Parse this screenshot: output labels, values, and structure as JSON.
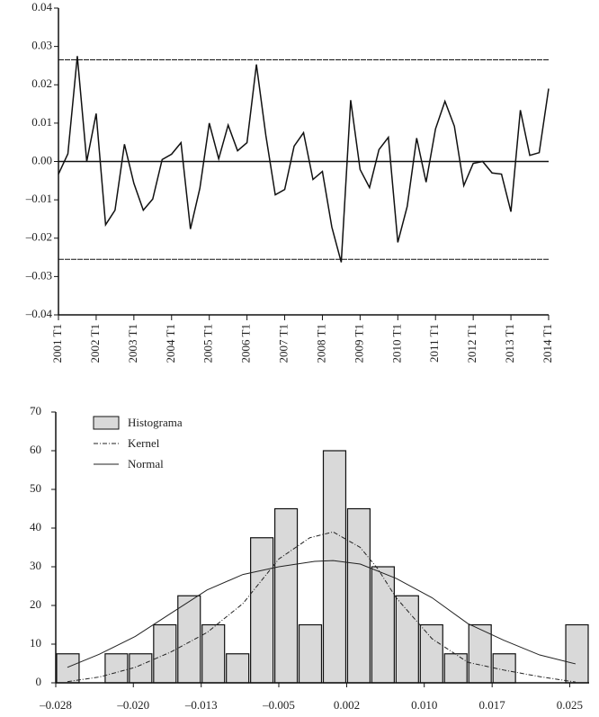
{
  "chart_data": [
    {
      "type": "line",
      "categories": [
        "2001 T1",
        null,
        null,
        null,
        "2002 T1",
        null,
        null,
        null,
        "2003 T1",
        null,
        null,
        null,
        "2004 T1",
        null,
        null,
        null,
        "2005 T1",
        null,
        null,
        null,
        "2006 T1",
        null,
        null,
        null,
        "2007 T1",
        null,
        null,
        null,
        "2008 T1",
        null,
        null,
        null,
        "2009 T1",
        null,
        null,
        null,
        "2010 T1",
        null,
        null,
        null,
        "2011 T1",
        null,
        null,
        null,
        "2012 T1",
        null,
        null,
        null,
        "2013 T1",
        null,
        null,
        null,
        "2014 T1"
      ],
      "series": [
        {
          "color": "#111111",
          "values": [
            -0.0033,
            0.002,
            0.0275,
            0.0,
            0.0125,
            -0.0165,
            -0.0127,
            0.0045,
            -0.0057,
            -0.0127,
            -0.0098,
            0.0005,
            0.0019,
            0.0049,
            -0.0176,
            -0.007,
            0.01,
            0.0007,
            0.0095,
            0.0028,
            0.0049,
            0.0253,
            0.0068,
            -0.0087,
            -0.0073,
            0.004,
            0.0075,
            -0.0047,
            -0.0026,
            -0.0171,
            -0.0263,
            0.016,
            -0.0021,
            -0.0068,
            0.0031,
            0.0063,
            -0.0211,
            -0.0117,
            0.0061,
            -0.0054,
            0.0085,
            0.0157,
            0.0092,
            -0.0063,
            -0.0005,
            0.0,
            -0.003,
            -0.0033,
            -0.0131,
            0.0134,
            0.0016,
            0.0023,
            0.019
          ]
        }
      ],
      "ylim": [
        -0.04,
        0.04
      ],
      "yticks": [
        {
          "value": -0.04,
          "label": "–0.04"
        },
        {
          "value": -0.03,
          "label": "–0.03"
        },
        {
          "value": -0.02,
          "label": "–0.02"
        },
        {
          "value": -0.01,
          "label": "–0.01"
        },
        {
          "value": 0,
          "label": "0.00"
        },
        0.01,
        0.02,
        0.03,
        0.04
      ],
      "hlines": [
        {
          "value": 0.0265,
          "style": "dashed"
        },
        {
          "value": 0,
          "style": "solid"
        },
        {
          "value": -0.0255,
          "style": "dashed"
        }
      ]
    },
    {
      "type": "histogram",
      "histogram": {
        "name": "Histograma",
        "color": "#d9d9d9",
        "bins": [
          -0.028,
          -0.0255,
          -0.023,
          -0.0205,
          -0.018,
          -0.0155,
          -0.013,
          -0.0105,
          -0.008,
          -0.0055,
          -0.003,
          -0.0005,
          0.002,
          0.0045,
          0.007,
          0.0095,
          0.012,
          0.0145,
          0.017,
          0.0195,
          0.022,
          0.0245,
          0.027
        ],
        "counts": [
          7.5,
          0,
          7.5,
          7.5,
          15,
          22.5,
          15,
          7.5,
          37.5,
          45,
          15,
          60,
          45,
          30,
          22.5,
          15,
          7.5,
          15,
          7.5,
          0,
          0,
          15
        ]
      },
      "series": [
        {
          "name": "Kernel",
          "color": "#222222",
          "style": "dashed",
          "x": [
            -0.0268,
            -0.0235,
            -0.0198,
            -0.0161,
            -0.0124,
            -0.0087,
            -0.005,
            -0.0018,
            0.0006,
            0.0034,
            0.0052,
            0.0071,
            0.0108,
            0.0145,
            0.0182,
            0.0219,
            0.0256
          ],
          "values": [
            0.3,
            1.5,
            4,
            8,
            13,
            20.5,
            32,
            37.5,
            39,
            35,
            29.5,
            22,
            11.4,
            5.3,
            3.3,
            1.6,
            0.2
          ]
        },
        {
          "name": "Normal",
          "color": "#222222",
          "style": "solid",
          "x": [
            -0.0268,
            -0.0235,
            -0.0198,
            -0.0161,
            -0.0124,
            -0.0087,
            -0.005,
            -0.0013,
            0.0006,
            0.0034,
            0.0071,
            0.0108,
            0.0145,
            0.0182,
            0.0219,
            0.0256
          ],
          "values": [
            4,
            7.4,
            12,
            18,
            24,
            28,
            30,
            31.4,
            31.6,
            30.7,
            27,
            22,
            15.3,
            11,
            7.2,
            4.9
          ]
        }
      ],
      "xlim": [
        -0.028,
        0.027
      ],
      "xticks": [
        {
          "value": -0.028,
          "label": "–0.028"
        },
        {
          "value": -0.02,
          "label": "–0.020"
        },
        {
          "value": -0.013,
          "label": "–0.013"
        },
        {
          "value": -0.005,
          "label": "–0.005"
        },
        {
          "value": 0.002,
          "label": "0.002"
        },
        {
          "value": 0.01,
          "label": "0.010"
        },
        {
          "value": 0.017,
          "label": "0.017"
        },
        {
          "value": 0.025,
          "label": "0.025"
        }
      ],
      "ylim": [
        0,
        70
      ],
      "yticks": [
        0,
        10,
        20,
        30,
        40,
        50,
        60,
        70
      ],
      "legend": "upper left"
    }
  ]
}
